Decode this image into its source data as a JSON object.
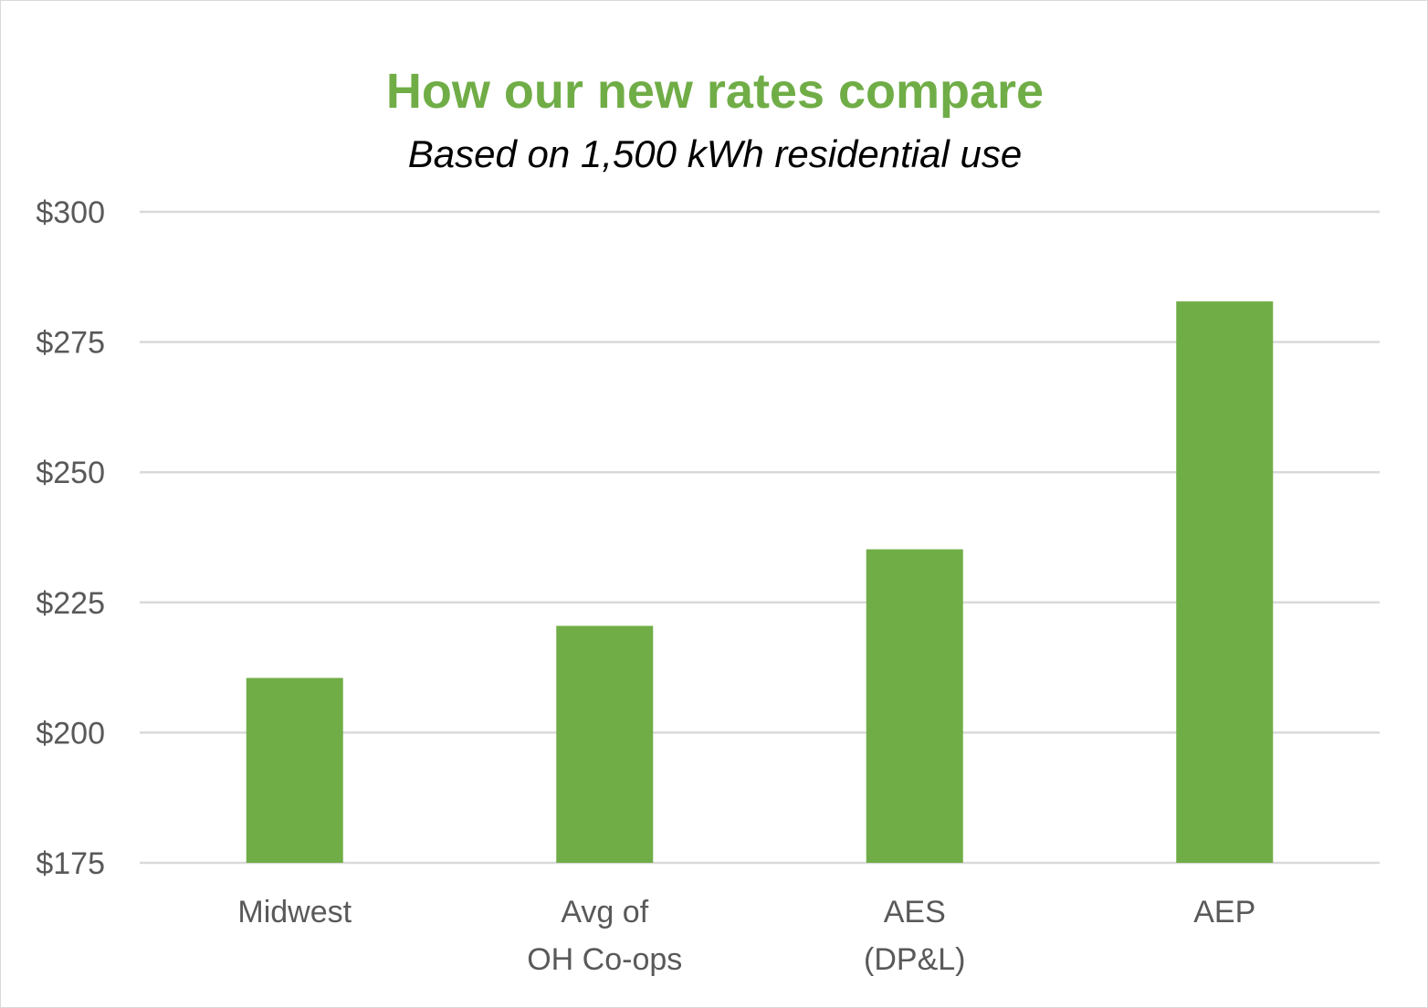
{
  "chart_data": {
    "type": "bar",
    "title": "How our new rates compare",
    "subtitle": "Based on 1,500 kWh residential use",
    "categories": [
      [
        "Midwest"
      ],
      [
        "Avg of",
        "OH Co-ops"
      ],
      [
        "AES",
        "(DP&L)"
      ],
      [
        "AEP"
      ]
    ],
    "values": [
      210.5,
      220.5,
      235.2,
      282.8
    ],
    "ylim": [
      175,
      300
    ],
    "yticks": [
      175,
      200,
      225,
      250,
      275,
      300
    ],
    "ytick_prefix": "$",
    "xlabel": "",
    "ylabel": "",
    "grid": true,
    "legend": "none",
    "colors": {
      "bar": "#70ad47",
      "title": "#70ad47",
      "grid": "#d9d9d9",
      "text": "#595959"
    }
  }
}
